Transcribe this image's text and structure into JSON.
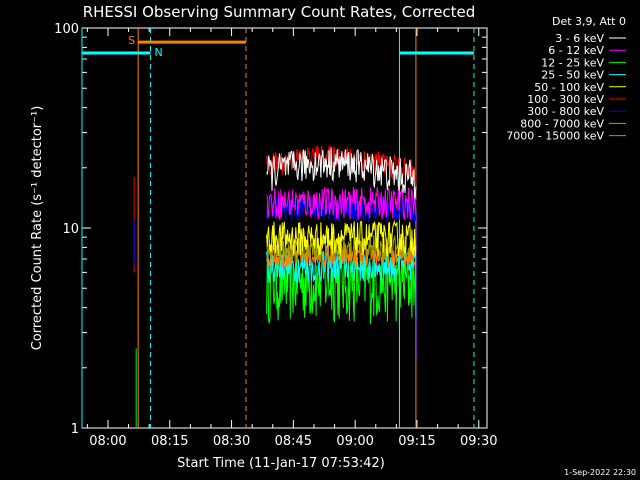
{
  "chart_data": {
    "type": "line",
    "title": "RHESSI Observing Summary Count Rates, Corrected",
    "xlabel": "Start Time (11-Jan-17 07:53:42)",
    "ylabel": "Corrected Count Rate (s⁻¹ detector⁻¹)",
    "y_scale": "log",
    "ylim": [
      1,
      100
    ],
    "xlim": [
      "07:53:42",
      "09:32:00"
    ],
    "x_ticks": [
      "08:00",
      "08:15",
      "08:30",
      "08:45",
      "09:00",
      "09:15",
      "09:30"
    ],
    "y_ticks": [
      "1",
      "10",
      "100"
    ],
    "footer_date": "1-Sep-2022 22:30",
    "legend": {
      "header": "Det 3,9, Att 0",
      "placement": "right"
    },
    "series": [
      {
        "name": "3 - 6 keV",
        "color": "#ffffff",
        "level": 19,
        "spread": 4
      },
      {
        "name": "6 - 12 keV",
        "color": "#ff00ff",
        "level": 13.5,
        "spread": 2.5
      },
      {
        "name": "12 - 25 keV",
        "color": "#00ff00",
        "level": 5.5,
        "spread": 2.2
      },
      {
        "name": "25 - 50 keV",
        "color": "#00ffff",
        "level": 6.5,
        "spread": 1.2
      },
      {
        "name": "50 - 100 keV",
        "color": "#ffff00",
        "level": 9.0,
        "spread": 1.8
      },
      {
        "name": "100 - 300 keV",
        "color": "#ff0000",
        "level": 20.5,
        "spread": 3.0
      },
      {
        "name": "300 - 800 keV",
        "color": "#0000ff",
        "level": 12.5,
        "spread": 1.8
      },
      {
        "name": "800 - 7000 keV",
        "color": "#ff8000",
        "level": 7.3,
        "spread": 1.0
      },
      {
        "name": "7000 - 15000 keV",
        "color": "#a0a000",
        "level": 8.0,
        "spread": 1.2
      }
    ],
    "data_interval": {
      "start": "08:38:30",
      "end": "09:14:45"
    },
    "annotations": {
      "saa": {
        "label": "S",
        "color": "#ff8000",
        "start": "08:07:20",
        "end": "08:33:30",
        "level": 85
      },
      "night": {
        "label": "N",
        "color": "#00ffff",
        "level": 75,
        "intervals": [
          [
            "07:53:42",
            "08:10:20"
          ],
          [
            "09:10:45",
            "09:28:50"
          ]
        ]
      },
      "saa_boundaries": [
        "08:07:20",
        "08:33:30",
        "09:14:45"
      ],
      "night_boundaries": [
        "07:53:42",
        "08:10:20",
        "09:10:45",
        "09:28:50"
      ]
    }
  }
}
